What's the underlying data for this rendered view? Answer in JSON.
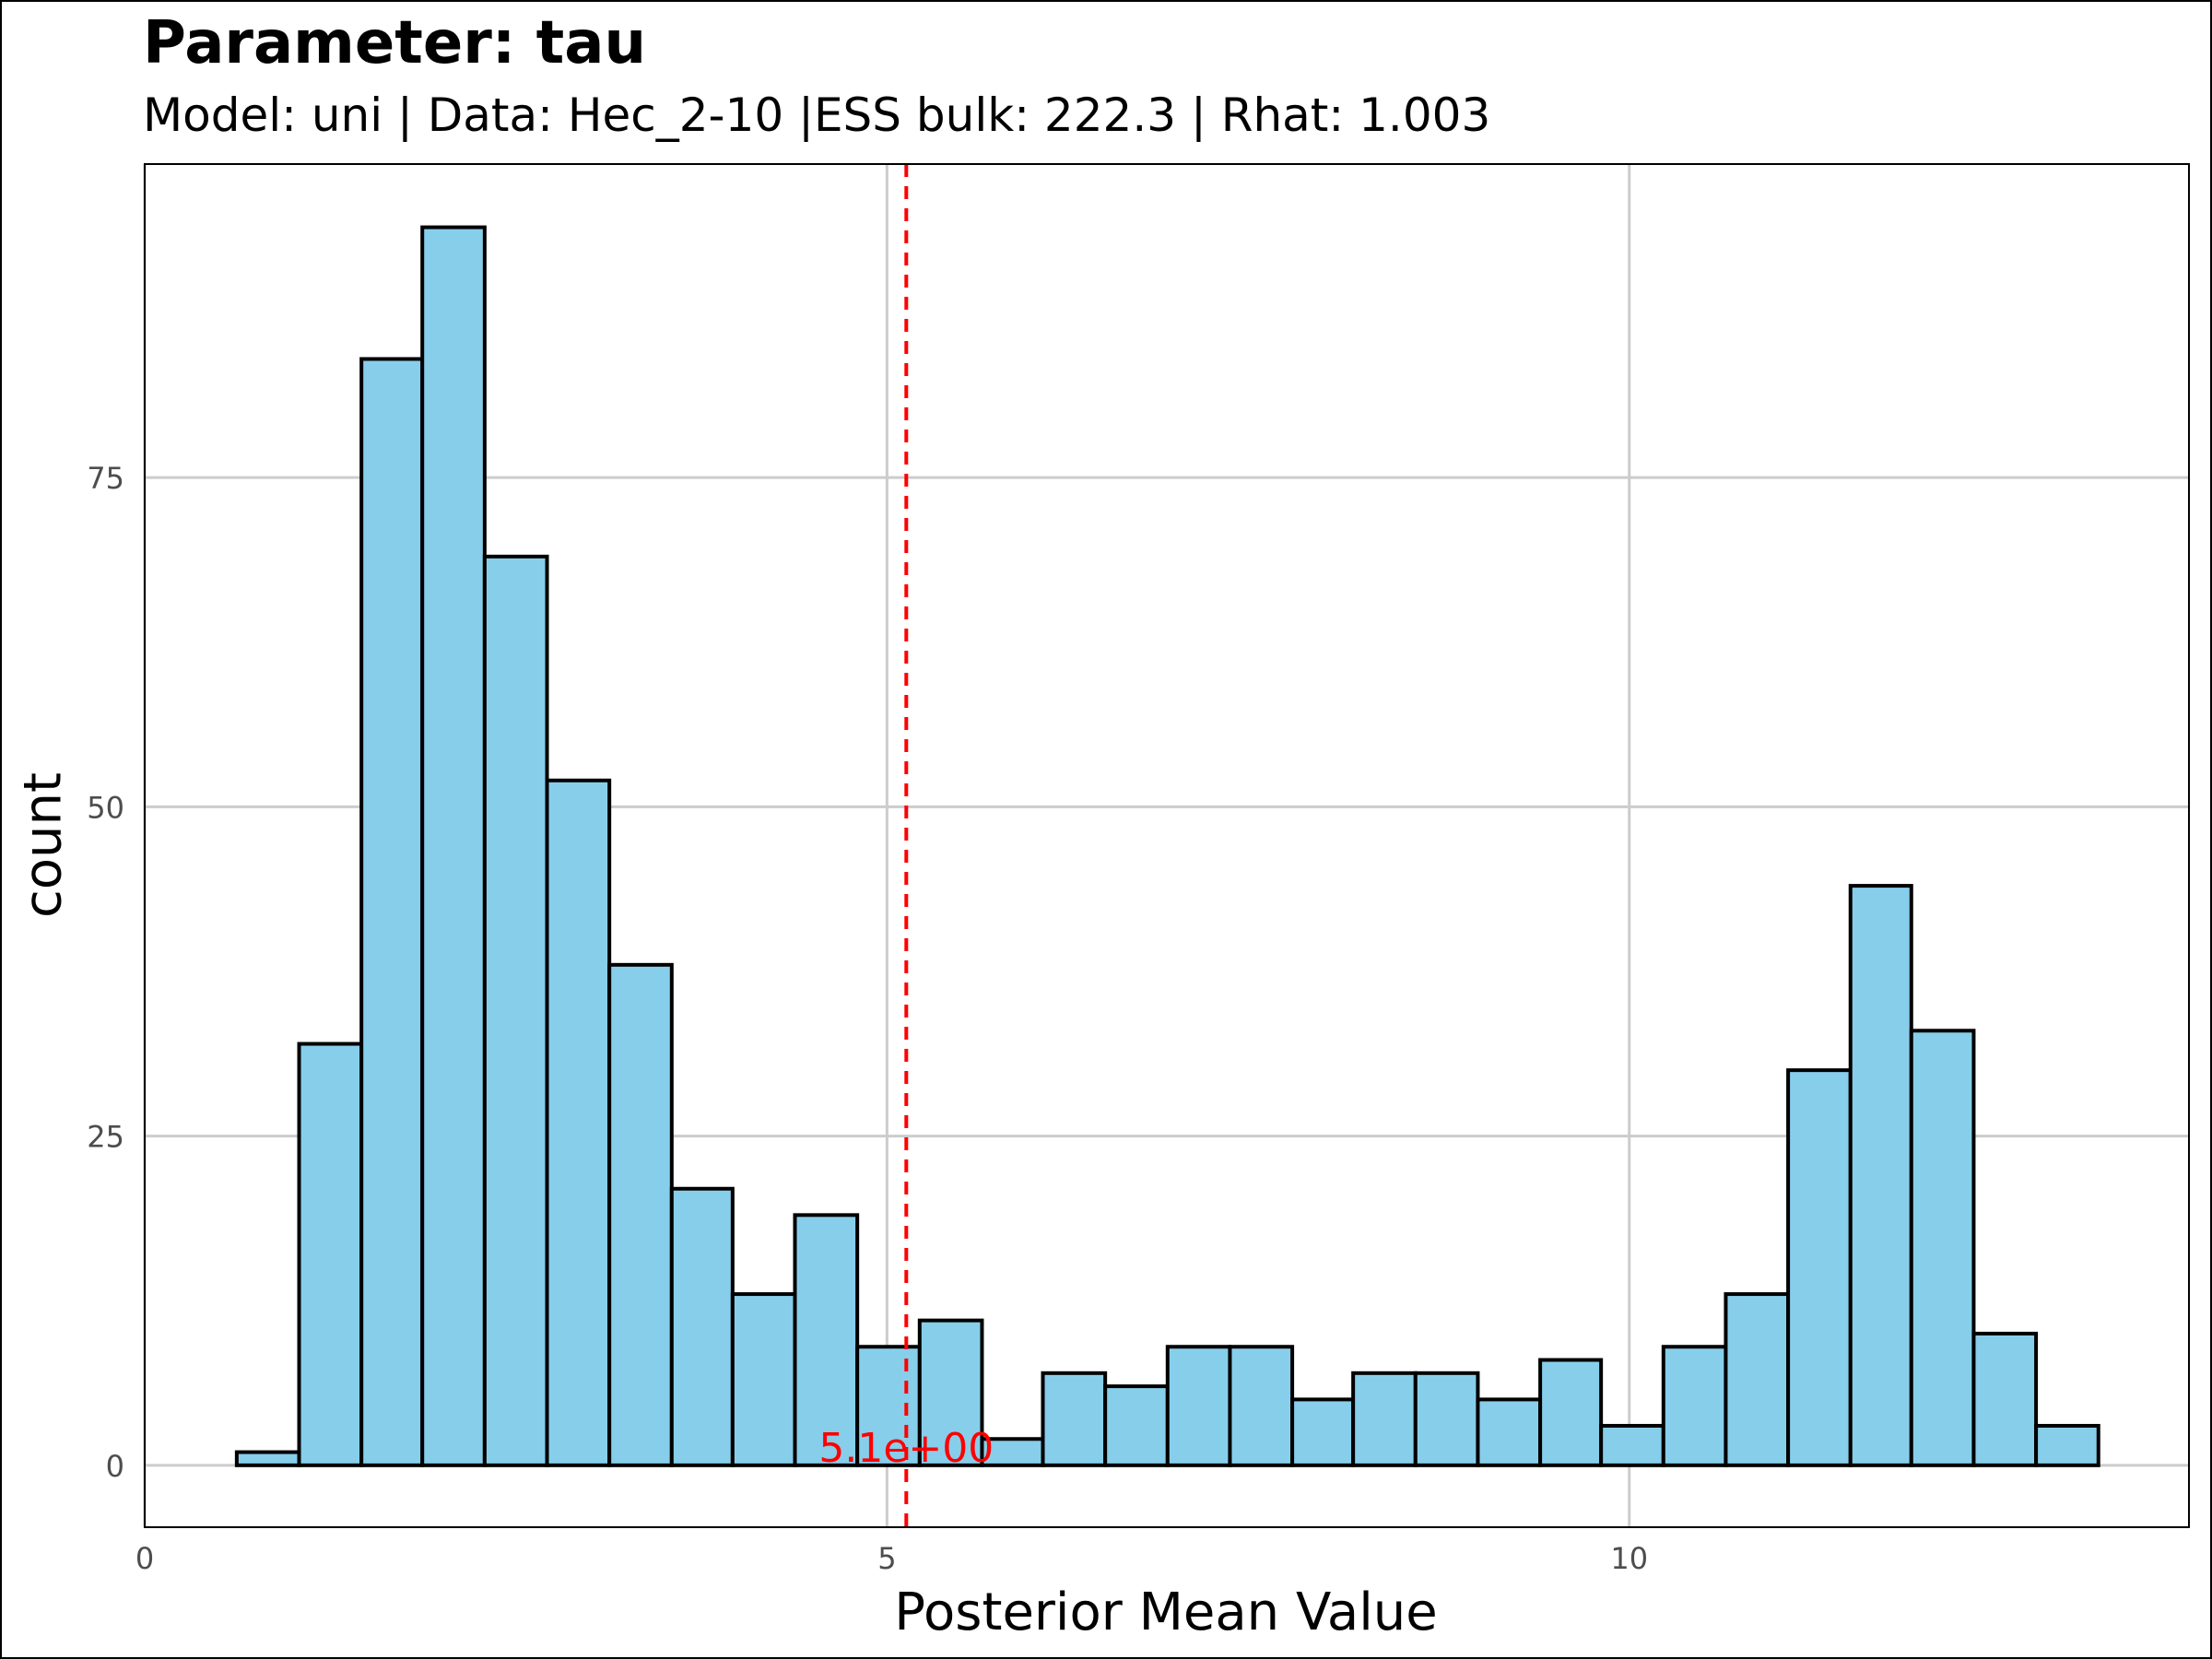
{
  "title": "Parameter: tau",
  "subtitle": "Model: uni | Data: Hec_2-10 |ESS bulk: 222.3 | Rhat: 1.003",
  "chart_data": {
    "type": "bar",
    "subtype": "histogram",
    "xlabel": "Posterior Mean Value",
    "ylabel": "count",
    "xlim": [
      0,
      13.77
    ],
    "ylim": [
      -4.7,
      98.8
    ],
    "x_ticks": [
      0,
      5,
      10
    ],
    "y_ticks": [
      0,
      25,
      50,
      75
    ],
    "x_tick_labels": [
      "0",
      "5",
      "10"
    ],
    "y_tick_labels": [
      "0",
      "25",
      "50",
      "75"
    ],
    "grid": true,
    "bins": [
      {
        "x0": 0.62,
        "x1": 1.04,
        "count": 1
      },
      {
        "x0": 1.04,
        "x1": 1.46,
        "count": 32
      },
      {
        "x0": 1.46,
        "x1": 1.87,
        "count": 84
      },
      {
        "x0": 1.87,
        "x1": 2.29,
        "count": 94
      },
      {
        "x0": 2.29,
        "x1": 2.71,
        "count": 69
      },
      {
        "x0": 2.71,
        "x1": 3.13,
        "count": 52
      },
      {
        "x0": 3.13,
        "x1": 3.55,
        "count": 38
      },
      {
        "x0": 3.55,
        "x1": 3.96,
        "count": 21
      },
      {
        "x0": 3.96,
        "x1": 4.38,
        "count": 13
      },
      {
        "x0": 4.38,
        "x1": 4.8,
        "count": 19
      },
      {
        "x0": 4.8,
        "x1": 5.22,
        "count": 9
      },
      {
        "x0": 5.22,
        "x1": 5.64,
        "count": 11
      },
      {
        "x0": 5.64,
        "x1": 6.05,
        "count": 2
      },
      {
        "x0": 6.05,
        "x1": 6.47,
        "count": 7
      },
      {
        "x0": 6.47,
        "x1": 6.89,
        "count": 6
      },
      {
        "x0": 6.89,
        "x1": 7.31,
        "count": 9
      },
      {
        "x0": 7.31,
        "x1": 7.73,
        "count": 9
      },
      {
        "x0": 7.73,
        "x1": 8.14,
        "count": 5
      },
      {
        "x0": 8.14,
        "x1": 8.56,
        "count": 7
      },
      {
        "x0": 8.56,
        "x1": 8.98,
        "count": 7
      },
      {
        "x0": 8.98,
        "x1": 9.4,
        "count": 5
      },
      {
        "x0": 9.4,
        "x1": 9.81,
        "count": 8
      },
      {
        "x0": 9.81,
        "x1": 10.23,
        "count": 3
      },
      {
        "x0": 10.23,
        "x1": 10.65,
        "count": 9
      },
      {
        "x0": 10.65,
        "x1": 11.07,
        "count": 13
      },
      {
        "x0": 11.07,
        "x1": 11.49,
        "count": 30
      },
      {
        "x0": 11.49,
        "x1": 11.9,
        "count": 44
      },
      {
        "x0": 11.9,
        "x1": 12.32,
        "count": 33
      },
      {
        "x0": 12.32,
        "x1": 12.74,
        "count": 10
      },
      {
        "x0": 12.74,
        "x1": 13.16,
        "count": 3
      }
    ],
    "mean_line": {
      "x": 5.13,
      "label": "5.1e+00"
    },
    "colors": {
      "bar_fill": "#87CEEB",
      "bar_stroke": "#000000",
      "mean_line": "#FF0000",
      "grid": "#CCCCCC",
      "tick_text": "#4D4D4D"
    }
  }
}
